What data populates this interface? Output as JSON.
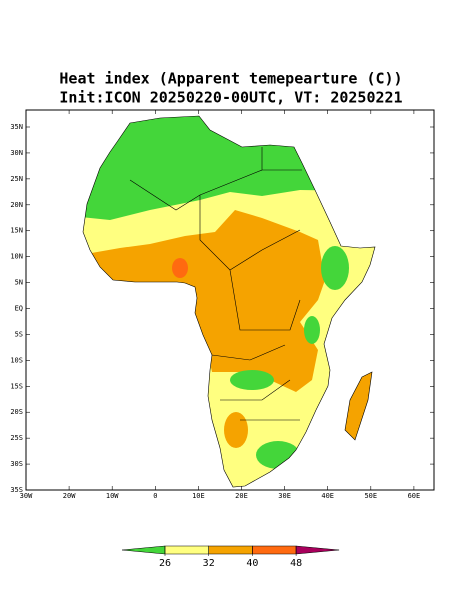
{
  "title": [
    "Heat index (Apparent temepearture (C))",
    "Init:ICON 20250220-00UTC, VT: 20250221"
  ],
  "lat_labels": [
    "35N",
    "30N",
    "25N",
    "20N",
    "15N",
    "10N",
    "5N",
    "EQ",
    "5S",
    "10S",
    "15S",
    "20S",
    "25S",
    "30S",
    "35S"
  ],
  "lon_labels": [
    "30W",
    "20W",
    "10W",
    "0",
    "10E",
    "20E",
    "30E",
    "40E",
    "50E",
    "60E"
  ],
  "colorbar": {
    "colors": [
      "#44d63a",
      "#ffff80",
      "#f5a300",
      "#ff6a10",
      "#a8005c"
    ],
    "ticks": [
      26,
      32,
      40,
      48
    ]
  }
}
